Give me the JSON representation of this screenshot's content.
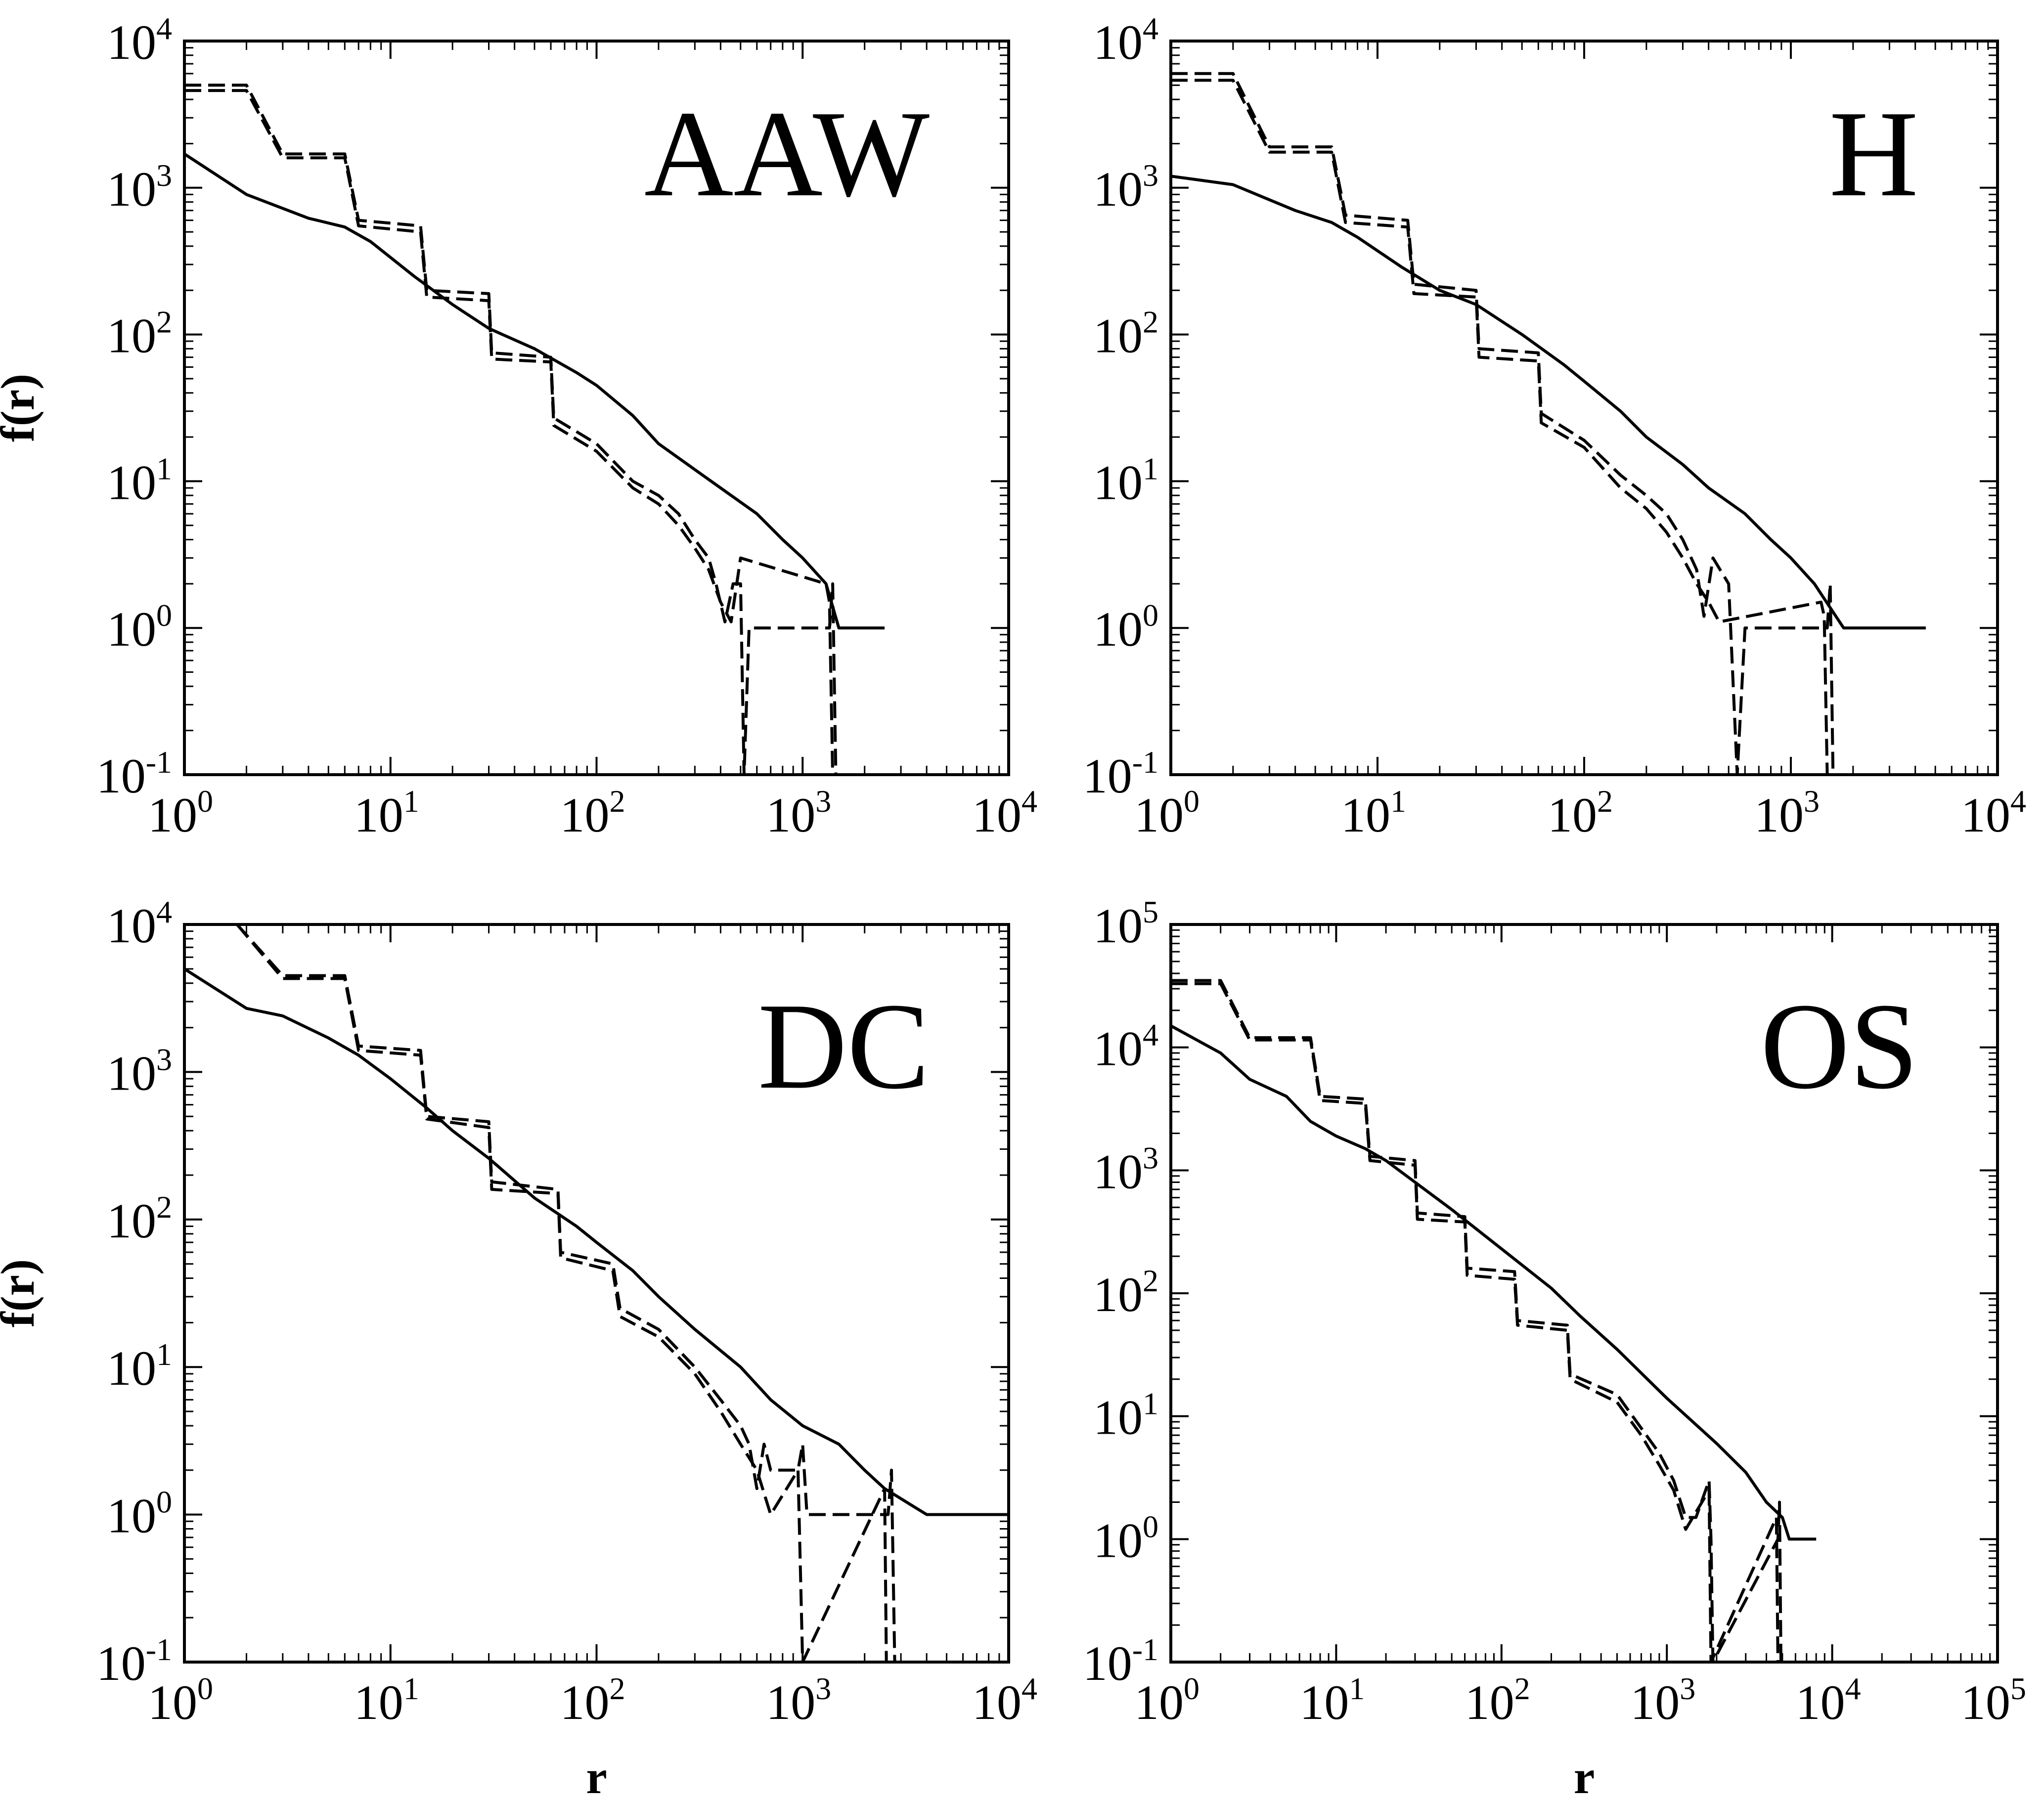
{
  "chart_data": [
    {
      "type": "line",
      "title": "AAW",
      "xlabel": "",
      "ylabel": "f(r)",
      "xscale": "log",
      "yscale": "log",
      "xlim": [
        1,
        10000
      ],
      "ylim": [
        0.1,
        10000
      ],
      "x_ticks": [
        "10^0",
        "10^1",
        "10^2",
        "10^3",
        "10^4"
      ],
      "y_ticks": [
        "10^-1",
        "10^0",
        "10^1",
        "10^2",
        "10^3",
        "10^4"
      ],
      "series": [
        {
          "style": "solid",
          "x": [
            1,
            2,
            4,
            6,
            8,
            13,
            20,
            30,
            50,
            80,
            100,
            150,
            200,
            300,
            400,
            600,
            800,
            1000,
            1300,
            1500,
            2500
          ],
          "y": [
            1700,
            900,
            620,
            540,
            430,
            250,
            160,
            110,
            80,
            55,
            45,
            28,
            18,
            12,
            9,
            6,
            4,
            3,
            2,
            1,
            1
          ]
        },
        {
          "style": "dashed",
          "x": [
            1,
            2,
            3,
            6,
            7,
            14,
            15,
            30,
            31,
            60,
            62,
            100,
            150,
            200,
            250,
            300,
            350,
            380,
            420,
            460,
            500,
            520,
            550,
            1350,
            1400,
            1450
          ],
          "y": [
            5000,
            5000,
            1700,
            1700,
            600,
            550,
            200,
            190,
            75,
            70,
            27,
            18,
            10,
            8,
            6,
            4,
            3,
            2,
            1.1,
            2,
            2,
            0.1,
            1,
            1,
            2,
            0.1
          ]
        },
        {
          "style": "dashed",
          "x": [
            1,
            2,
            3,
            6,
            7,
            14,
            15,
            30,
            31,
            60,
            62,
            100,
            150,
            200,
            250,
            300,
            350,
            400,
            450,
            500,
            1300,
            1350,
            1400
          ],
          "y": [
            4600,
            4600,
            1600,
            1600,
            550,
            500,
            180,
            170,
            68,
            65,
            24,
            16,
            9,
            7,
            5,
            3.5,
            2.5,
            1.5,
            1.1,
            3,
            2,
            1.5,
            0.1
          ]
        }
      ]
    },
    {
      "type": "line",
      "title": "H",
      "xlabel": "",
      "ylabel": "",
      "xscale": "log",
      "yscale": "log",
      "xlim": [
        1,
        10000
      ],
      "ylim": [
        0.1,
        10000
      ],
      "x_ticks": [
        "10^0",
        "10^1",
        "10^2",
        "10^3",
        "10^4"
      ],
      "y_ticks": [
        "10^-1",
        "10^0",
        "10^1",
        "10^2",
        "10^3",
        "10^4"
      ],
      "series": [
        {
          "style": "solid",
          "x": [
            1,
            2,
            4,
            6,
            8,
            13,
            20,
            30,
            50,
            80,
            100,
            150,
            200,
            300,
            400,
            600,
            800,
            1000,
            1300,
            1800,
            4500
          ],
          "y": [
            1200,
            1050,
            700,
            580,
            460,
            290,
            200,
            160,
            100,
            62,
            48,
            30,
            20,
            13,
            9,
            6,
            4,
            3,
            2,
            1,
            1
          ]
        },
        {
          "style": "dashed",
          "x": [
            1,
            2,
            3,
            6,
            7,
            14,
            15,
            30,
            31,
            60,
            62,
            100,
            150,
            200,
            250,
            300,
            350,
            380,
            420,
            500,
            550,
            600,
            1500,
            1550,
            1600
          ],
          "y": [
            6000,
            6000,
            1900,
            1900,
            650,
            600,
            220,
            200,
            80,
            75,
            29,
            19,
            11,
            8,
            6,
            4,
            2.5,
            1.2,
            3,
            2,
            0.1,
            1,
            1,
            2,
            0.1
          ]
        },
        {
          "style": "dashed",
          "x": [
            1,
            2,
            3,
            6,
            7,
            14,
            15,
            30,
            31,
            60,
            62,
            100,
            150,
            200,
            250,
            300,
            350,
            400,
            450,
            1400,
            1450,
            1500
          ],
          "y": [
            5400,
            5400,
            1750,
            1750,
            580,
            540,
            190,
            180,
            70,
            66,
            25,
            17,
            9,
            6.5,
            4.5,
            3,
            2,
            1.5,
            1.1,
            1.5,
            1.2,
            0.1
          ]
        }
      ]
    },
    {
      "type": "line",
      "title": "DC",
      "xlabel": "r",
      "ylabel": "f(r)",
      "xscale": "log",
      "yscale": "log",
      "xlim": [
        1,
        10000
      ],
      "ylim": [
        0.1,
        10000
      ],
      "x_ticks": [
        "10^0",
        "10^1",
        "10^2",
        "10^3",
        "10^4"
      ],
      "y_ticks": [
        "10^-1",
        "10^0",
        "10^1",
        "10^2",
        "10^3",
        "10^4"
      ],
      "series": [
        {
          "style": "solid",
          "x": [
            1,
            2,
            3,
            5,
            7,
            10,
            15,
            20,
            30,
            50,
            80,
            100,
            150,
            200,
            300,
            500,
            700,
            1000,
            1500,
            2000,
            2500,
            4000,
            10000
          ],
          "y": [
            5000,
            2700,
            2400,
            1700,
            1300,
            900,
            570,
            400,
            260,
            140,
            90,
            70,
            45,
            30,
            18,
            10,
            6,
            4,
            3,
            2,
            1.5,
            1,
            1
          ]
        },
        {
          "style": "dashed",
          "x": [
            1.8,
            3,
            6,
            7,
            14,
            15,
            30,
            31,
            65,
            67,
            120,
            130,
            200,
            300,
            400,
            500,
            550,
            600,
            650,
            700,
            950,
            1000,
            1050,
            2600,
            2700,
            2800
          ],
          "y": [
            10000,
            4500,
            4500,
            1500,
            1400,
            500,
            460,
            180,
            160,
            60,
            50,
            25,
            18,
            10,
            6,
            4,
            3,
            1.5,
            3,
            2,
            2,
            3,
            1,
            1,
            2,
            0.1
          ]
        },
        {
          "style": "dashed",
          "x": [
            1.8,
            3,
            6,
            7,
            14,
            15,
            30,
            31,
            65,
            67,
            120,
            130,
            200,
            300,
            400,
            500,
            600,
            700,
            950,
            1000,
            2500,
            2550
          ],
          "y": [
            10000,
            4300,
            4300,
            1400,
            1300,
            480,
            420,
            160,
            150,
            55,
            45,
            22,
            16,
            9,
            5,
            3,
            2,
            1,
            2,
            0.1,
            1.5,
            0.1
          ]
        }
      ]
    },
    {
      "type": "line",
      "title": "OS",
      "xlabel": "r",
      "ylabel": "",
      "xscale": "log",
      "yscale": "log",
      "xlim": [
        1,
        100000
      ],
      "ylim": [
        0.1,
        100000
      ],
      "x_ticks": [
        "10^0",
        "10^1",
        "10^2",
        "10^3",
        "10^4",
        "10^5"
      ],
      "y_ticks": [
        "10^-1",
        "10^0",
        "10^1",
        "10^2",
        "10^3",
        "10^4",
        "10^5"
      ],
      "series": [
        {
          "style": "solid",
          "x": [
            1,
            2,
            3,
            5,
            7,
            10,
            15,
            20,
            30,
            50,
            100,
            200,
            300,
            500,
            1000,
            2000,
            3000,
            4000,
            5000,
            5500,
            8000
          ],
          "y": [
            15000,
            9000,
            5500,
            4000,
            2500,
            1900,
            1500,
            1200,
            800,
            480,
            230,
            110,
            65,
            35,
            14,
            6,
            3.5,
            2,
            1.5,
            1,
            1
          ]
        },
        {
          "style": "dashed",
          "x": [
            1,
            2,
            3,
            7,
            8,
            15,
            16,
            30,
            31,
            60,
            62,
            120,
            125,
            250,
            260,
            500,
            700,
            900,
            1100,
            1300,
            1500,
            1800,
            1850,
            1900,
            4700,
            4800,
            4900
          ],
          "y": [
            35000,
            35000,
            12000,
            12000,
            4000,
            3800,
            1300,
            1200,
            450,
            420,
            160,
            150,
            60,
            55,
            22,
            15,
            8,
            5,
            3,
            1.5,
            1.5,
            3,
            1,
            0.1,
            1,
            2,
            0.1
          ]
        },
        {
          "style": "dashed",
          "x": [
            1,
            2,
            3,
            7,
            8,
            15,
            16,
            30,
            31,
            60,
            62,
            120,
            125,
            250,
            260,
            500,
            700,
            900,
            1100,
            1300,
            1800,
            1850,
            4600,
            4700
          ],
          "y": [
            33000,
            33000,
            11500,
            11500,
            3700,
            3500,
            1200,
            1100,
            400,
            380,
            140,
            130,
            55,
            50,
            20,
            13,
            7,
            4,
            2.5,
            1.2,
            2.5,
            0.1,
            1.5,
            0.1
          ]
        }
      ]
    }
  ]
}
